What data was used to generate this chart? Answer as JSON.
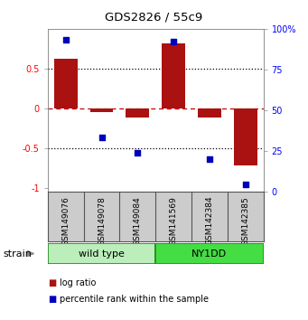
{
  "title": "GDS2826 / 55c9",
  "samples": [
    "GSM149076",
    "GSM149078",
    "GSM149084",
    "GSM141569",
    "GSM142384",
    "GSM142385"
  ],
  "groups": [
    {
      "label": "wild type",
      "indices": [
        0,
        1,
        2
      ],
      "color_wild": "#b8f0b8",
      "color_ny": "#44dd44"
    },
    {
      "label": "NY1DD",
      "indices": [
        3,
        4,
        5
      ]
    }
  ],
  "log_ratio": [
    0.62,
    -0.05,
    -0.12,
    0.82,
    -0.12,
    -0.72
  ],
  "percentile_rank": [
    93,
    32,
    22,
    92,
    18,
    2
  ],
  "bar_color": "#aa1111",
  "dot_color": "#0000bb",
  "ylim_left": [
    -1.05,
    1.0
  ],
  "ylim_right": [
    0,
    100
  ],
  "yticks_left": [
    -1,
    -0.5,
    0,
    0.5
  ],
  "ytick_labels_left": [
    "-1",
    "-0.5",
    "0",
    "0.5"
  ],
  "yticks_right": [
    0,
    25,
    50,
    75,
    100
  ],
  "ytick_labels_right": [
    "0",
    "25",
    "50",
    "75",
    "100%"
  ],
  "wild_type_color": "#bbeebb",
  "ny1dd_color": "#44dd44",
  "sample_box_color": "#cccccc",
  "background_color": "#ffffff",
  "legend_items": [
    {
      "color": "#aa1111",
      "label": "log ratio"
    },
    {
      "color": "#0000bb",
      "label": "percentile rank within the sample"
    }
  ],
  "strain_label": "strain"
}
